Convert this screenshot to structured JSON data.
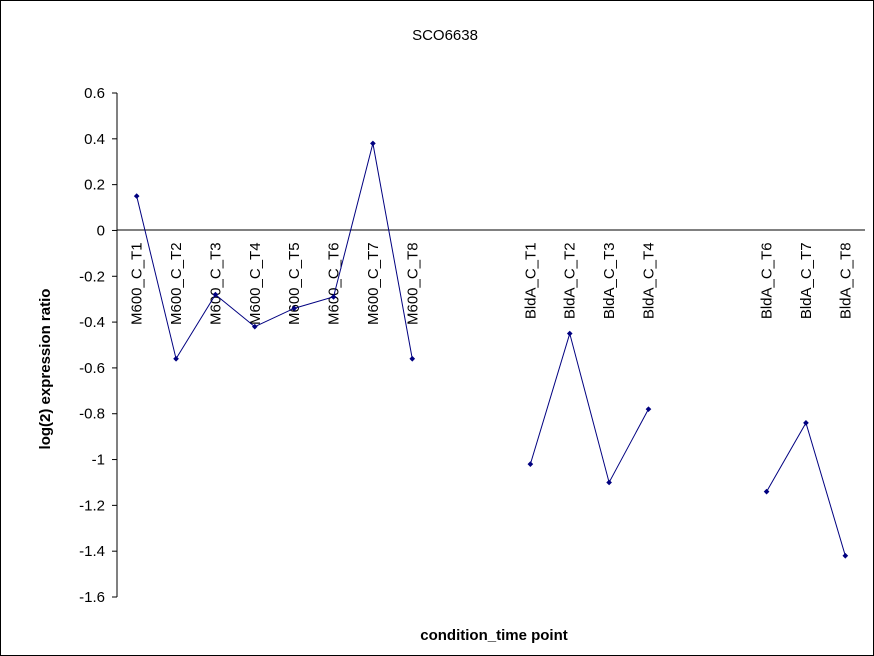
{
  "chart_data": {
    "type": "line",
    "title": "SCO6638",
    "xlabel": "condition_time point",
    "ylabel": "log(2) expression ratio",
    "ylim": [
      -1.6,
      0.6
    ],
    "ytick_step": 0.2,
    "yticks": [
      "0.6",
      "0.4",
      "0.2",
      "0",
      "-0.2",
      "-0.4",
      "-0.6",
      "-0.8",
      "-1",
      "-1.2",
      "-1.4",
      "-1.6"
    ],
    "grid": false,
    "legend": "none",
    "categories": [
      "M600_C_T1",
      "M600_C_T2",
      "M600_C_T3",
      "M600_C_T4",
      "M600_C_T5",
      "M600_C_T6",
      "M600_C_T7",
      "M600_C_T8",
      "",
      "",
      "BldA_C_T1",
      "BldA_C_T2",
      "BldA_C_T3",
      "BldA_C_T4",
      "",
      "",
      "BldA_C_T6",
      "BldA_C_T7",
      "BldA_C_T8"
    ],
    "series": [
      {
        "color": "#000080",
        "values": [
          0.15,
          -0.56,
          -0.28,
          -0.42,
          -0.34,
          -0.29,
          0.38,
          -0.56,
          null,
          null,
          -1.02,
          -0.45,
          -1.1,
          -0.78,
          null,
          null,
          -1.14,
          -0.84,
          -1.42
        ]
      }
    ]
  }
}
